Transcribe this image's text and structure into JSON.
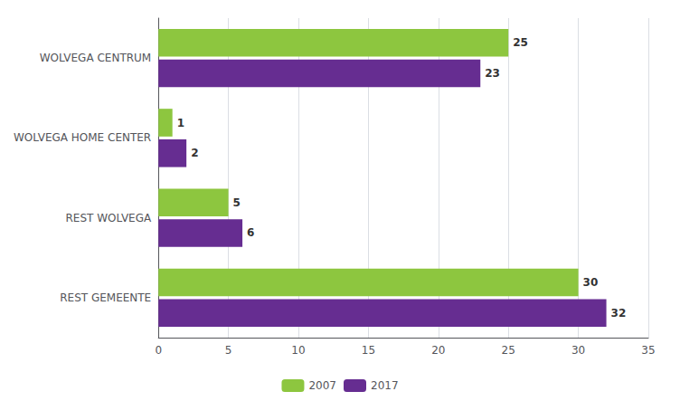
{
  "chart_data": {
    "type": "bar",
    "orientation": "horizontal",
    "categories": [
      "REST GEMEENTE",
      "REST WOLVEGA",
      "WOLVEGA HOME CENTER",
      "WOLVEGA CENTRUM"
    ],
    "series": [
      {
        "name": "2007",
        "color": "#8DC63F",
        "values": [
          30,
          5,
          1,
          25
        ]
      },
      {
        "name": "2017",
        "color": "#662D91",
        "values": [
          32,
          6,
          2,
          23
        ]
      }
    ],
    "xlim": [
      0,
      35
    ],
    "xticks": [
      0,
      5,
      10,
      15,
      20,
      25,
      30,
      35
    ],
    "grid": true,
    "legend": "bottom",
    "data_labels": true
  }
}
